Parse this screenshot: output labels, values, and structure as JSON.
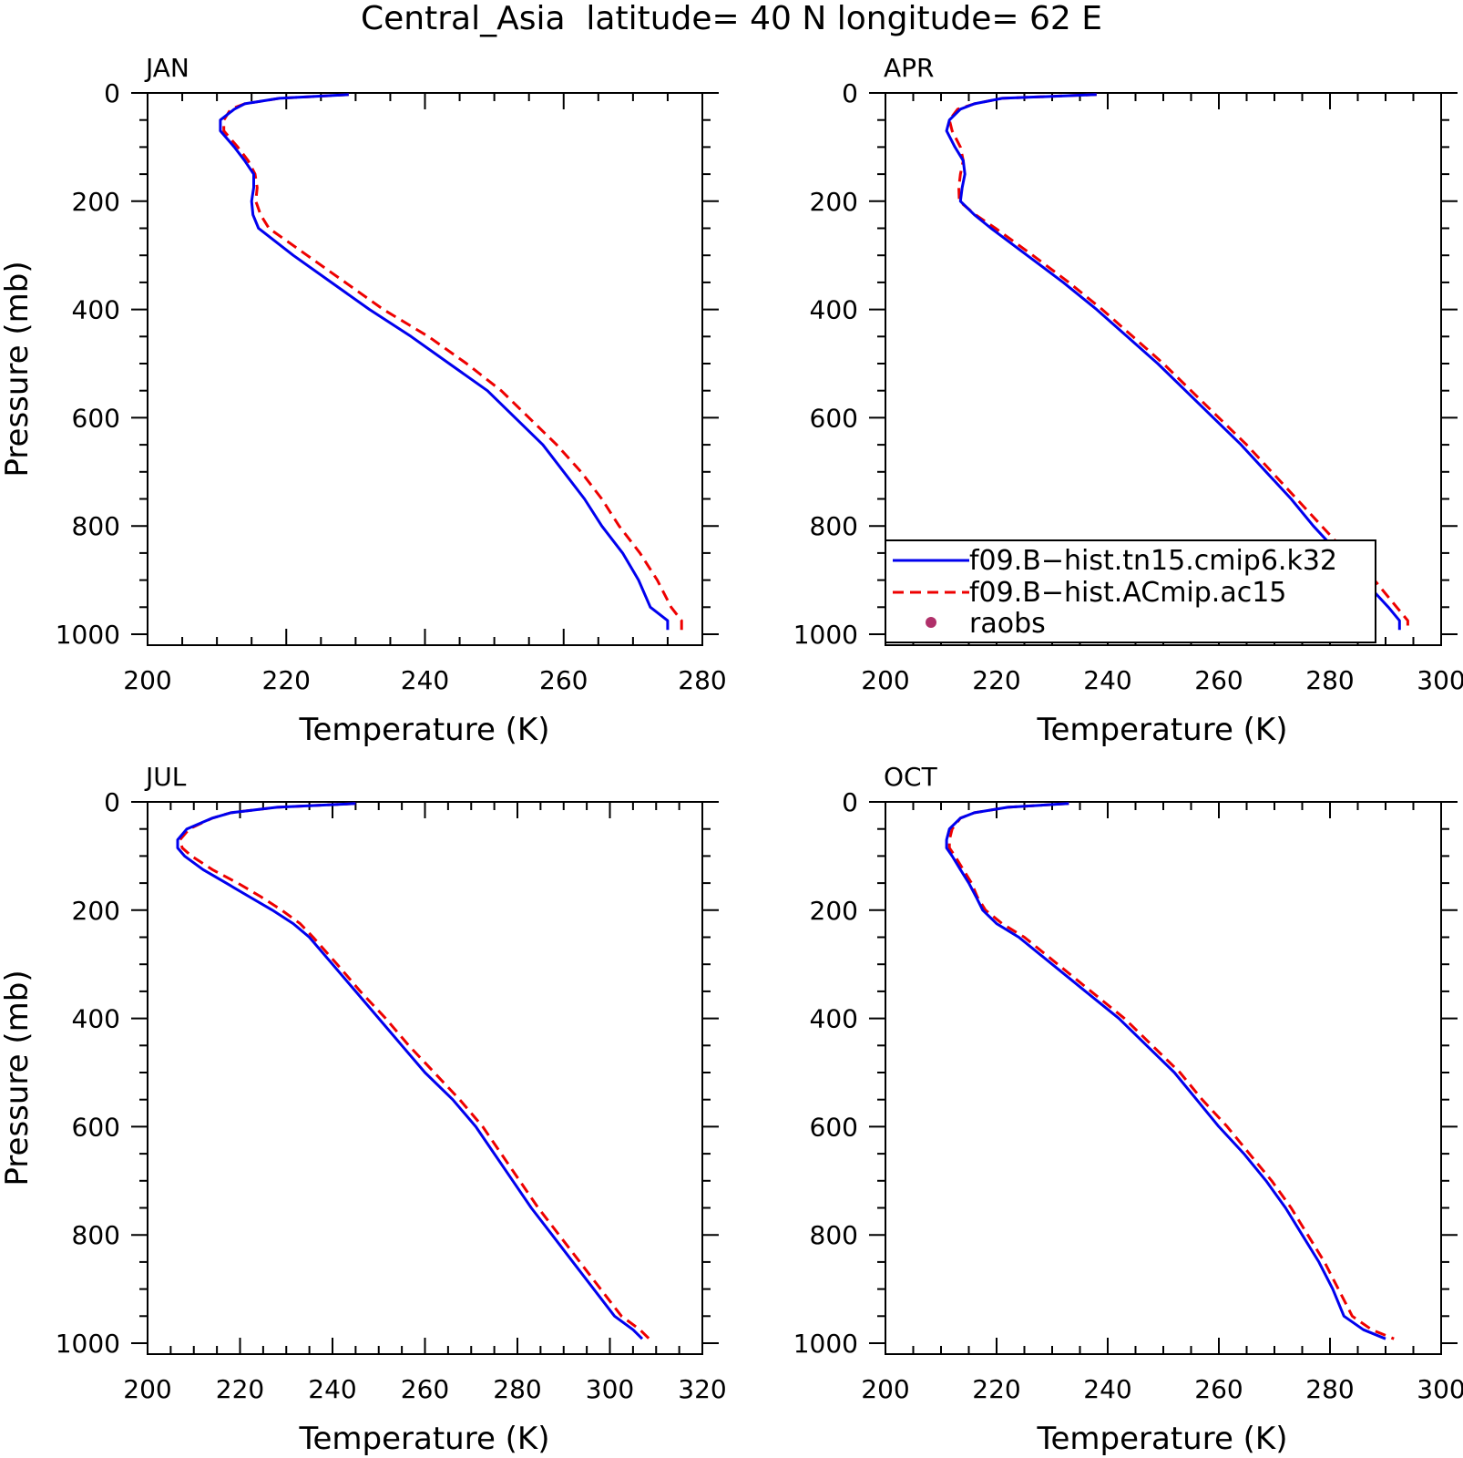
{
  "figure_title": "Central_Asia  latitude= 40 N longitude= 62 E",
  "colors": {
    "model1": "#0000ee",
    "model2": "#ee0000",
    "raobs": "#b0306a",
    "axes": "#000000"
  },
  "legend": {
    "placement": "lower-left of APR panel",
    "entries": [
      {
        "label": "f09.B−hist.tn15.cmip6.k32",
        "style": "solid",
        "color": "#0000ee"
      },
      {
        "label": "f09.B−hist.ACmip.ac15",
        "style": "dashed",
        "color": "#ee0000"
      },
      {
        "label": "raobs",
        "style": "marker",
        "color": "#b0306a"
      }
    ]
  },
  "chart_data": [
    {
      "type": "line",
      "panel_label": "JAN",
      "xlabel": "Temperature (K)",
      "ylabel": "Pressure (mb)",
      "xlim": [
        200,
        280
      ],
      "ylim": [
        1000,
        0
      ],
      "y_inverted": true,
      "x_ticks": [
        "200",
        "220",
        "240",
        "260",
        "280"
      ],
      "y_ticks": [
        "0",
        "200",
        "400",
        "600",
        "800",
        "1000"
      ],
      "pressure": [
        3,
        10,
        20,
        30,
        50,
        70,
        100,
        125,
        150,
        175,
        200,
        225,
        250,
        300,
        350,
        400,
        450,
        500,
        550,
        600,
        650,
        700,
        750,
        800,
        850,
        900,
        950,
        975,
        992
      ],
      "series": [
        {
          "name": "f09.B−hist.tn15.cmip6.k32",
          "values": [
            229,
            219,
            214,
            212.5,
            210.5,
            210.5,
            212.5,
            214,
            215.3,
            215.3,
            215,
            215.2,
            216,
            221,
            226.5,
            232,
            238,
            243.5,
            249,
            253,
            257,
            260,
            263,
            265.5,
            268.5,
            270.8,
            272.5,
            275,
            275
          ]
        },
        {
          "name": "f09.B−hist.ACmip.ac15",
          "values": [
            229,
            219,
            214,
            212,
            211,
            211,
            213,
            214.5,
            215.5,
            215.8,
            215.6,
            216.3,
            217.5,
            223,
            228.5,
            234,
            240.5,
            246,
            251,
            255,
            259,
            262.5,
            265.5,
            268,
            271,
            273.5,
            275.5,
            277,
            277
          ]
        }
      ]
    },
    {
      "type": "line",
      "panel_label": "APR",
      "xlabel": "Temperature (K)",
      "ylabel": "",
      "xlim": [
        200,
        300
      ],
      "ylim": [
        1000,
        0
      ],
      "y_inverted": true,
      "x_ticks": [
        "200",
        "220",
        "240",
        "260",
        "280",
        "300"
      ],
      "y_ticks": [
        "0",
        "200",
        "400",
        "600",
        "800",
        "1000"
      ],
      "pressure": [
        3,
        10,
        20,
        30,
        50,
        70,
        100,
        125,
        150,
        175,
        200,
        225,
        250,
        300,
        350,
        400,
        450,
        500,
        550,
        600,
        650,
        700,
        750,
        800,
        850,
        900,
        950,
        975,
        992
      ],
      "series": [
        {
          "name": "f09.B−hist.tn15.cmip6.k32",
          "values": [
            238,
            221,
            216,
            213.5,
            211.5,
            211,
            212.5,
            214,
            214.3,
            213.8,
            213.5,
            216,
            219,
            225.5,
            232,
            238,
            243.5,
            249,
            254,
            259,
            264,
            268.5,
            273,
            277,
            281.5,
            286,
            290.5,
            292.5,
            292.5
          ]
        },
        {
          "name": "f09.B−hist.ACmip.ac15",
          "values": [
            238,
            221,
            216,
            213,
            211.5,
            212,
            213.5,
            214,
            213.5,
            213.2,
            213.3,
            216.2,
            219.8,
            226.5,
            233,
            239,
            244.5,
            250,
            255,
            260,
            265,
            269.5,
            274,
            278.5,
            283,
            288,
            292,
            294,
            294
          ]
        }
      ]
    },
    {
      "type": "line",
      "panel_label": "JUL",
      "xlabel": "Temperature (K)",
      "ylabel": "Pressure (mb)",
      "xlim": [
        200,
        320
      ],
      "ylim": [
        1000,
        0
      ],
      "y_inverted": true,
      "x_ticks": [
        "200",
        "220",
        "240",
        "260",
        "280",
        "300",
        "320"
      ],
      "y_ticks": [
        "0",
        "200",
        "400",
        "600",
        "800",
        "1000"
      ],
      "pressure": [
        3,
        10,
        20,
        30,
        50,
        70,
        85,
        100,
        125,
        150,
        175,
        200,
        225,
        250,
        300,
        350,
        400,
        450,
        500,
        550,
        600,
        650,
        700,
        750,
        800,
        850,
        900,
        950,
        975,
        992
      ],
      "series": [
        {
          "name": "f09.B−hist.tn15.cmip6.k32",
          "values": [
            245,
            228,
            218,
            214,
            208.5,
            206.5,
            206.5,
            208,
            212,
            217,
            222,
            227,
            231.5,
            235,
            240,
            245,
            250,
            255,
            260,
            266,
            271,
            275,
            279,
            283,
            287.5,
            292,
            296.5,
            301,
            305,
            307
          ]
        },
        {
          "name": "f09.B−hist.ACmip.ac15",
          "values": [
            245,
            228,
            218,
            214,
            209,
            207,
            207.5,
            209.5,
            214,
            219.5,
            224.5,
            229,
            233,
            235.8,
            241,
            246,
            251.5,
            256.5,
            262,
            267.5,
            272.5,
            276.5,
            280.5,
            284.5,
            289,
            293.5,
            298,
            302.5,
            306.5,
            308.5
          ]
        }
      ]
    },
    {
      "type": "line",
      "panel_label": "OCT",
      "xlabel": "Temperature (K)",
      "ylabel": "",
      "xlim": [
        200,
        300
      ],
      "ylim": [
        1000,
        0
      ],
      "y_inverted": true,
      "x_ticks": [
        "200",
        "220",
        "240",
        "260",
        "280",
        "300"
      ],
      "y_ticks": [
        "0",
        "200",
        "400",
        "600",
        "800",
        "1000"
      ],
      "pressure": [
        3,
        10,
        20,
        30,
        50,
        70,
        85,
        100,
        125,
        150,
        175,
        200,
        225,
        250,
        300,
        350,
        400,
        450,
        500,
        550,
        600,
        650,
        700,
        750,
        800,
        850,
        900,
        950,
        975,
        992
      ],
      "series": [
        {
          "name": "f09.B−hist.tn15.cmip6.k32",
          "values": [
            233,
            222,
            216,
            213.5,
            211.5,
            211,
            211,
            212,
            213.5,
            215,
            216.3,
            217.5,
            220,
            224,
            230,
            236,
            242,
            247,
            252,
            256,
            260,
            264.5,
            268.5,
            272,
            275,
            278,
            280.5,
            282.5,
            286,
            290
          ]
        },
        {
          "name": "f09.B−hist.ACmip.ac15",
          "values": [
            233,
            222,
            216,
            213.5,
            212,
            211.5,
            211.5,
            212.5,
            214,
            215.5,
            216.5,
            218,
            221,
            225,
            231,
            237,
            243,
            248,
            253,
            257,
            261.5,
            265.5,
            269.5,
            273,
            276,
            279,
            281.5,
            284,
            287.5,
            291.5
          ]
        }
      ]
    }
  ]
}
